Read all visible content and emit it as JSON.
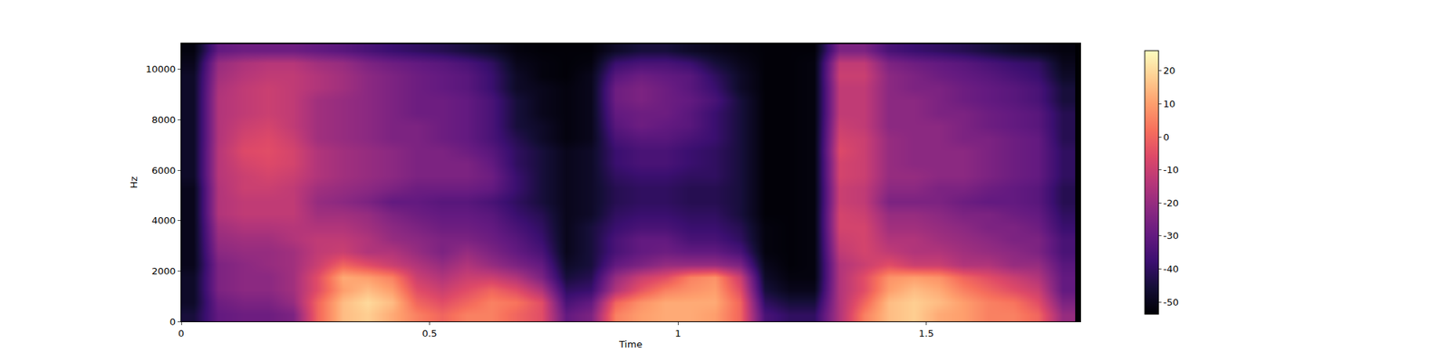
{
  "chart_data": {
    "type": "heatmap",
    "xlabel": "Time",
    "ylabel": "Hz",
    "xlim": [
      0,
      1.81
    ],
    "xticks": [
      0,
      0.5,
      1,
      1.5
    ],
    "ylim": [
      0,
      11025
    ],
    "yticks": [
      0,
      2000,
      4000,
      6000,
      8000,
      10000
    ],
    "x": [
      0.025,
      0.075,
      0.125,
      0.175,
      0.225,
      0.275,
      0.325,
      0.375,
      0.425,
      0.475,
      0.525,
      0.575,
      0.625,
      0.675,
      0.725,
      0.775,
      0.825,
      0.875,
      0.925,
      0.975,
      1.025,
      1.075,
      1.125,
      1.175,
      1.225,
      1.275,
      1.325,
      1.375,
      1.425,
      1.475,
      1.525,
      1.575,
      1.625,
      1.675,
      1.725,
      1.775
    ],
    "y": [
      250,
      750,
      1250,
      1750,
      2250,
      2750,
      3250,
      3750,
      4250,
      4750,
      5250,
      5750,
      6250,
      6750,
      7250,
      7750,
      8250,
      8750,
      9250,
      9750,
      10250,
      10750
    ],
    "cells": [
      [
        -45,
        -30,
        -28,
        -28,
        -25,
        0,
        15,
        18,
        12,
        5,
        0,
        5,
        5,
        0,
        -5,
        -30,
        -25,
        5,
        10,
        12,
        12,
        10,
        0,
        -35,
        -40,
        -40,
        -15,
        5,
        15,
        18,
        12,
        10,
        5,
        5,
        0,
        -20
      ],
      [
        -48,
        -28,
        -25,
        -25,
        -20,
        0,
        15,
        20,
        15,
        0,
        -5,
        0,
        5,
        3,
        -5,
        -35,
        -30,
        0,
        8,
        12,
        12,
        12,
        0,
        -40,
        -45,
        -45,
        -15,
        0,
        15,
        18,
        15,
        10,
        5,
        3,
        -5,
        -25
      ],
      [
        -48,
        -25,
        -22,
        -22,
        -18,
        -5,
        10,
        15,
        10,
        -5,
        -10,
        -5,
        0,
        -5,
        -15,
        -40,
        -38,
        -15,
        -3,
        5,
        8,
        10,
        -5,
        -45,
        -50,
        -50,
        -15,
        -5,
        10,
        15,
        12,
        5,
        0,
        -5,
        -10,
        -30
      ],
      [
        -48,
        -25,
        -22,
        -22,
        -18,
        -5,
        12,
        10,
        5,
        -10,
        -15,
        -10,
        -10,
        -15,
        -25,
        -45,
        -42,
        -20,
        -10,
        -5,
        5,
        8,
        -10,
        -48,
        -52,
        -52,
        -15,
        -5,
        8,
        10,
        8,
        0,
        -5,
        -10,
        -15,
        -30
      ],
      [
        -50,
        -25,
        -22,
        -20,
        -18,
        -10,
        0,
        -5,
        -10,
        -15,
        -20,
        -15,
        -20,
        -25,
        -30,
        -48,
        -45,
        -30,
        -25,
        -20,
        -20,
        -20,
        -25,
        -50,
        -53,
        -52,
        -15,
        -10,
        -5,
        -10,
        -10,
        -15,
        -15,
        -20,
        -20,
        -32
      ],
      [
        -50,
        -22,
        -20,
        -20,
        -18,
        -12,
        -10,
        -15,
        -15,
        -20,
        -25,
        -20,
        -25,
        -30,
        -35,
        -50,
        -45,
        -35,
        -30,
        -28,
        -30,
        -30,
        -35,
        -52,
        -53,
        -52,
        -12,
        -8,
        -12,
        -15,
        -15,
        -18,
        -20,
        -22,
        -25,
        -35
      ],
      [
        -50,
        -20,
        -18,
        -18,
        -15,
        -12,
        -12,
        -15,
        -20,
        -22,
        -25,
        -25,
        -28,
        -32,
        -38,
        -50,
        -45,
        -35,
        -30,
        -30,
        -35,
        -35,
        -40,
        -52,
        -53,
        -52,
        -10,
        -8,
        -15,
        -15,
        -18,
        -20,
        -22,
        -25,
        -25,
        -35
      ],
      [
        -50,
        -18,
        -15,
        -15,
        -14,
        -15,
        -15,
        -18,
        -22,
        -25,
        -28,
        -28,
        -30,
        -35,
        -40,
        -50,
        -45,
        -38,
        -35,
        -35,
        -38,
        -38,
        -42,
        -52,
        -53,
        -52,
        -8,
        -8,
        -18,
        -18,
        -20,
        -22,
        -25,
        -25,
        -28,
        -38
      ],
      [
        -50,
        -15,
        -12,
        -12,
        -12,
        -18,
        -18,
        -20,
        -25,
        -28,
        -30,
        -30,
        -32,
        -38,
        -42,
        -50,
        -48,
        -40,
        -38,
        -38,
        -40,
        -40,
        -45,
        -53,
        -53,
        -52,
        -8,
        -10,
        -20,
        -20,
        -22,
        -25,
        -25,
        -28,
        -30,
        -40
      ],
      [
        -50,
        -15,
        -12,
        -12,
        -12,
        -20,
        -22,
        -25,
        -30,
        -30,
        -32,
        -32,
        -35,
        -40,
        -45,
        -50,
        -48,
        -42,
        -40,
        -40,
        -42,
        -42,
        -45,
        -53,
        -53,
        -52,
        -10,
        -12,
        -25,
        -25,
        -25,
        -28,
        -30,
        -30,
        -32,
        -42
      ],
      [
        -50,
        -15,
        -10,
        -10,
        -12,
        -18,
        -20,
        -22,
        -25,
        -28,
        -28,
        -28,
        -30,
        -38,
        -45,
        -50,
        -48,
        -42,
        -40,
        -40,
        -42,
        -42,
        -45,
        -53,
        -53,
        -52,
        -10,
        -12,
        -22,
        -22,
        -25,
        -25,
        -28,
        -30,
        -32,
        -42
      ],
      [
        -48,
        -14,
        -10,
        -8,
        -10,
        -15,
        -18,
        -20,
        -22,
        -25,
        -25,
        -25,
        -28,
        -38,
        -45,
        -50,
        -48,
        -40,
        -38,
        -38,
        -40,
        -40,
        -45,
        -53,
        -53,
        -52,
        -8,
        -10,
        -20,
        -20,
        -22,
        -22,
        -25,
        -28,
        -30,
        -40
      ],
      [
        -48,
        -14,
        -8,
        -6,
        -8,
        -15,
        -18,
        -20,
        -22,
        -25,
        -25,
        -25,
        -30,
        -40,
        -45,
        -50,
        -48,
        -38,
        -35,
        -35,
        -38,
        -40,
        -45,
        -53,
        -53,
        -52,
        -8,
        -10,
        -20,
        -22,
        -22,
        -22,
        -25,
        -28,
        -30,
        -40
      ],
      [
        -48,
        -14,
        -6,
        -5,
        -8,
        -15,
        -18,
        -20,
        -22,
        -25,
        -25,
        -28,
        -32,
        -40,
        -45,
        -50,
        -48,
        -38,
        -35,
        -35,
        -38,
        -40,
        -45,
        -53,
        -53,
        -52,
        -6,
        -10,
        -20,
        -22,
        -22,
        -22,
        -25,
        -28,
        -30,
        -40
      ],
      [
        -48,
        -15,
        -8,
        -6,
        -10,
        -18,
        -20,
        -22,
        -25,
        -25,
        -28,
        -30,
        -35,
        -42,
        -48,
        -52,
        -50,
        -35,
        -32,
        -32,
        -35,
        -38,
        -45,
        -53,
        -53,
        -52,
        -8,
        -10,
        -20,
        -22,
        -22,
        -25,
        -25,
        -28,
        -30,
        -42
      ],
      [
        -48,
        -15,
        -10,
        -8,
        -12,
        -18,
        -20,
        -22,
        -25,
        -25,
        -28,
        -30,
        -35,
        -45,
        -48,
        -52,
        -50,
        -32,
        -28,
        -30,
        -32,
        -38,
        -45,
        -53,
        -53,
        -52,
        -10,
        -12,
        -22,
        -22,
        -22,
        -25,
        -28,
        -30,
        -32,
        -42
      ],
      [
        -48,
        -15,
        -12,
        -10,
        -12,
        -18,
        -20,
        -22,
        -25,
        -28,
        -28,
        -30,
        -35,
        -45,
        -50,
        -52,
        -50,
        -30,
        -28,
        -28,
        -32,
        -38,
        -45,
        -53,
        -53,
        -52,
        -12,
        -12,
        -22,
        -22,
        -25,
        -25,
        -28,
        -30,
        -32,
        -42
      ],
      [
        -48,
        -15,
        -12,
        -10,
        -12,
        -18,
        -20,
        -22,
        -25,
        -28,
        -28,
        -30,
        -35,
        -45,
        -50,
        -52,
        -50,
        -28,
        -25,
        -28,
        -30,
        -35,
        -45,
        -53,
        -53,
        -52,
        -12,
        -12,
        -22,
        -22,
        -25,
        -28,
        -30,
        -32,
        -35,
        -45
      ],
      [
        -48,
        -16,
        -12,
        -10,
        -12,
        -15,
        -18,
        -22,
        -25,
        -28,
        -30,
        -32,
        -38,
        -48,
        -50,
        -52,
        -50,
        -28,
        -25,
        -28,
        -32,
        -38,
        -48,
        -53,
        -53,
        -52,
        -12,
        -12,
        -22,
        -25,
        -25,
        -28,
        -30,
        -32,
        -35,
        -45
      ],
      [
        -48,
        -18,
        -14,
        -12,
        -12,
        -15,
        -18,
        -22,
        -25,
        -28,
        -30,
        -32,
        -38,
        -48,
        -52,
        -53,
        -50,
        -32,
        -28,
        -30,
        -32,
        -40,
        -48,
        -53,
        -53,
        -52,
        -10,
        -10,
        -22,
        -25,
        -28,
        -30,
        -32,
        -35,
        -38,
        -48
      ],
      [
        -50,
        -20,
        -16,
        -14,
        -14,
        -18,
        -20,
        -25,
        -28,
        -30,
        -32,
        -35,
        -40,
        -50,
        -52,
        -53,
        -52,
        -38,
        -35,
        -35,
        -38,
        -45,
        -50,
        -53,
        -53,
        -52,
        -12,
        -12,
        -25,
        -28,
        -30,
        -32,
        -35,
        -38,
        -40,
        -50
      ],
      [
        -52,
        -30,
        -28,
        -28,
        -28,
        -30,
        -32,
        -35,
        -38,
        -40,
        -42,
        -45,
        -48,
        -52,
        -53,
        -53,
        -53,
        -48,
        -45,
        -45,
        -48,
        -50,
        -52,
        -53,
        -53,
        -53,
        -25,
        -25,
        -35,
        -38,
        -40,
        -42,
        -45,
        -48,
        -50,
        -52
      ]
    ],
    "colorbar_range": [
      -53.7,
      26.1
    ],
    "colorbar_ticks": [
      -50,
      -40,
      -30,
      -20,
      -10,
      0,
      10,
      20
    ]
  }
}
